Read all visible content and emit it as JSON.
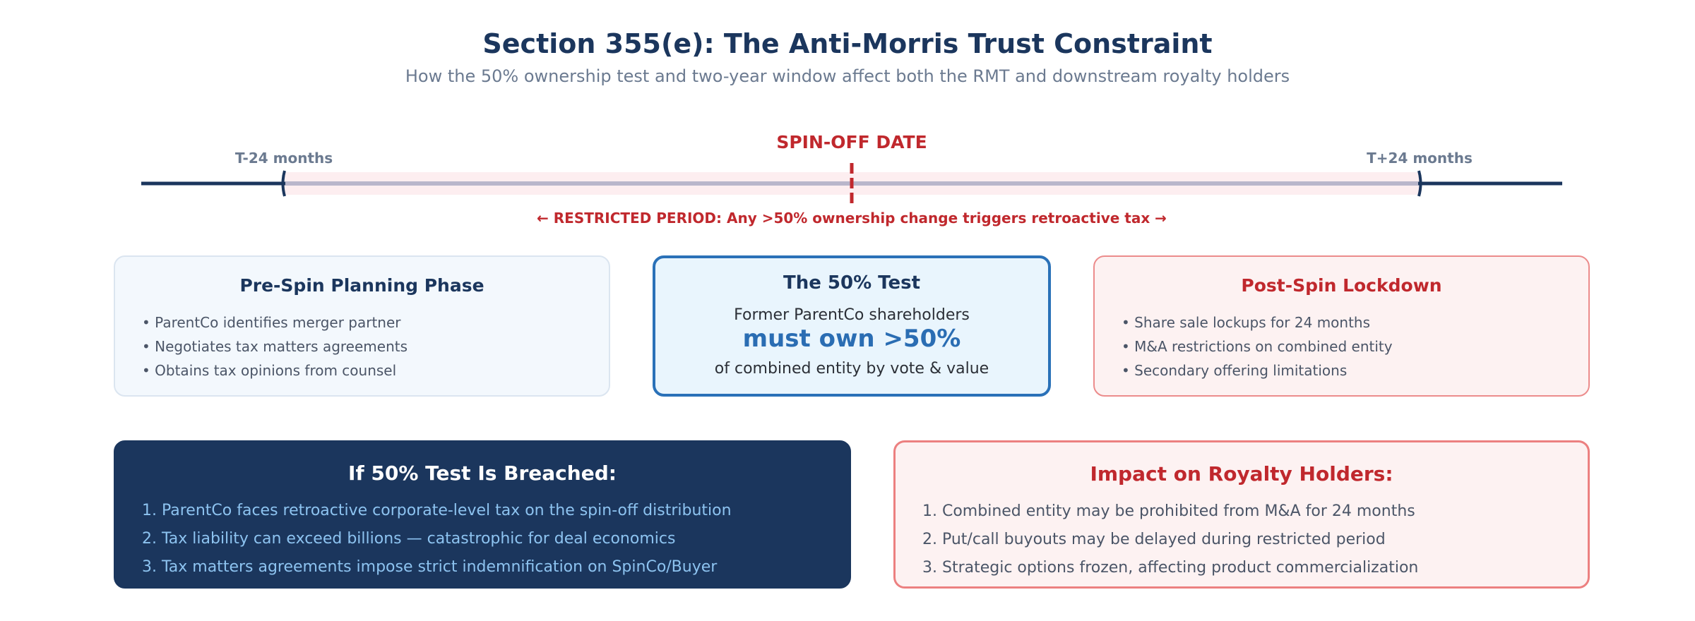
{
  "header": {
    "title": "Section 355(e): The Anti-Morris Trust Constraint",
    "subtitle": "How the 50% ownership test and two-year window affect both the RMT and downstream royalty holders"
  },
  "timeline": {
    "start_label": "T-24 months",
    "spin_label": "SPIN-OFF DATE",
    "end_label": "T+24 months",
    "restricted_label": "← RESTRICTED PERIOD: Any >50% ownership change triggers retroactive tax →"
  },
  "pre_spin": {
    "title": "Pre-Spin Planning Phase",
    "items": [
      "• ParentCo identifies merger partner",
      "• Negotiates tax matters agreements",
      "• Obtains tax opinions from counsel"
    ]
  },
  "test": {
    "title": "The 50% Test",
    "line1": "Former ParentCo shareholders",
    "emphasis": "must own >50%",
    "line3": "of combined entity by vote & value"
  },
  "post_spin": {
    "title": "Post-Spin Lockdown",
    "items": [
      "• Share sale lockups for 24 months",
      "• M&A restrictions on combined entity",
      "• Secondary offering limitations"
    ]
  },
  "breach": {
    "title": "If 50% Test Is Breached:",
    "items": [
      "1. ParentCo faces retroactive corporate-level tax on the spin-off distribution",
      "2. Tax liability can exceed billions — catastrophic for deal economics",
      "3. Tax matters agreements impose strict indemnification on SpinCo/Buyer"
    ]
  },
  "impact": {
    "title": "Impact on Royalty Holders:",
    "items": [
      "1. Combined entity may be prohibited from M&A for 24 months",
      "2. Put/call buyouts may be delayed during restricted period",
      "3. Strategic options frozen, affecting product commercialization"
    ]
  },
  "colors": {
    "navy": "#1b365d",
    "red": "#c0282d",
    "blue": "#2a71b8",
    "muted": "#6b7a90"
  }
}
